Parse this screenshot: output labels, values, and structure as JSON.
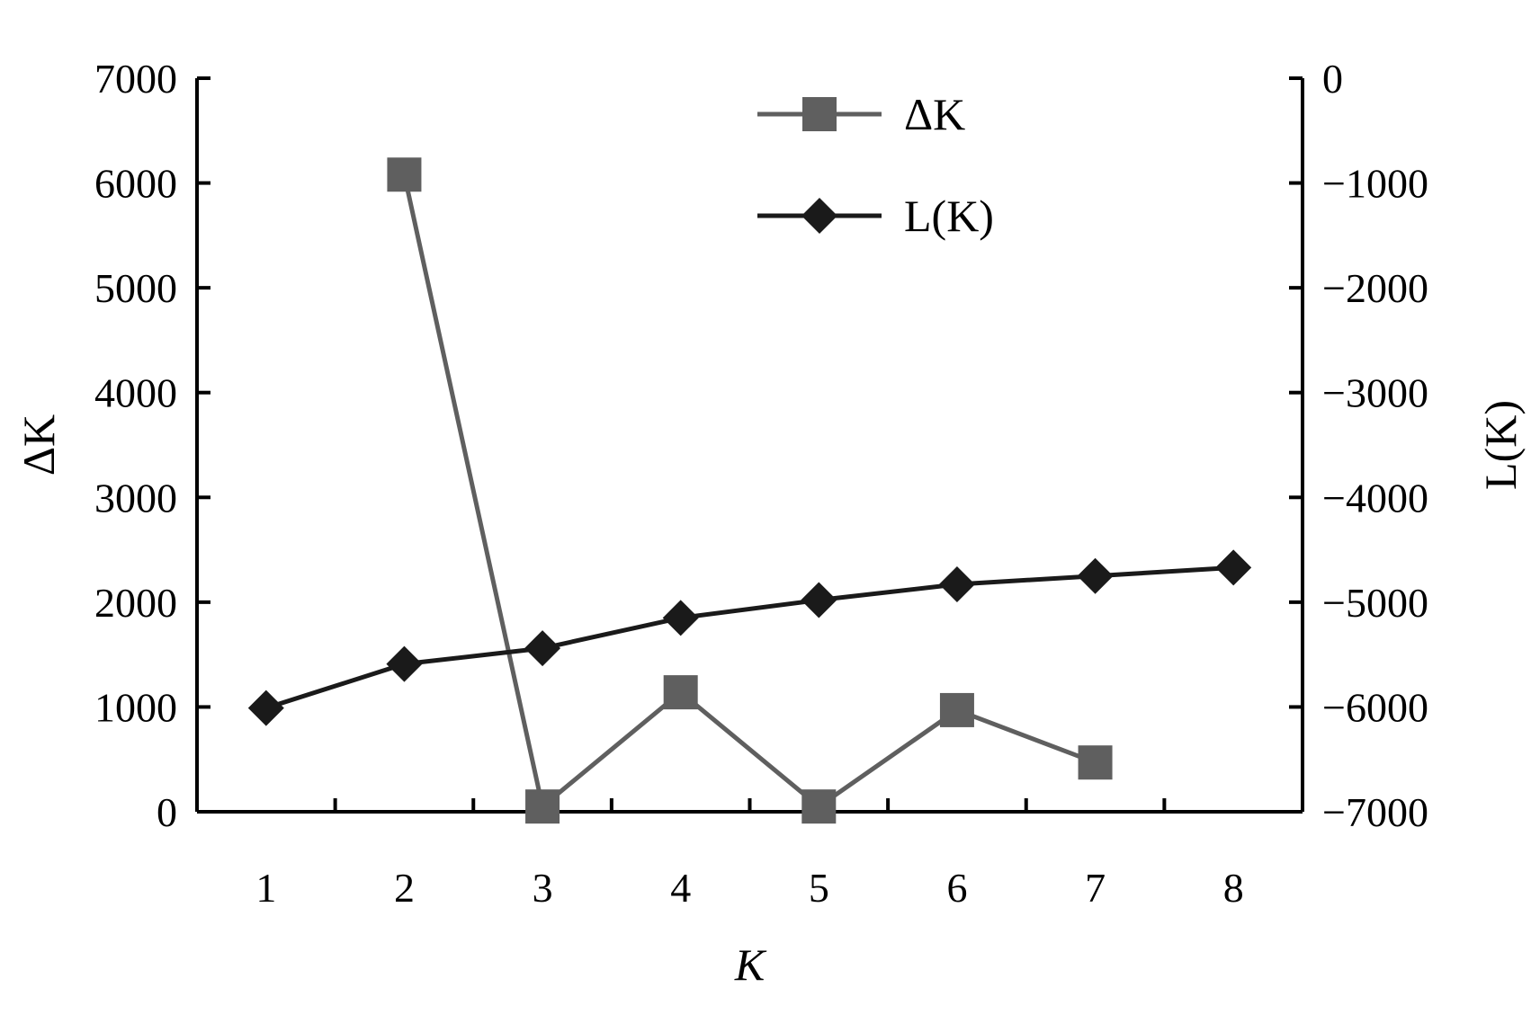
{
  "chart_data": {
    "type": "line",
    "x": [
      1,
      2,
      3,
      4,
      5,
      6,
      7,
      8
    ],
    "xlabel": "K",
    "xlim": [
      0.5,
      8.5
    ],
    "x_ticks": [
      "1",
      "2",
      "3",
      "4",
      "5",
      "6",
      "7",
      "8"
    ],
    "y_left": {
      "label": "ΔK",
      "lim": [
        0,
        7000
      ],
      "ticks": [
        "0",
        "1000",
        "2000",
        "3000",
        "4000",
        "5000",
        "6000",
        "7000"
      ]
    },
    "y_right": {
      "label": "L(K)",
      "lim": [
        -7000,
        0
      ],
      "ticks": [
        "−7000",
        "−6000",
        "−5000",
        "−4000",
        "−3000",
        "−2000",
        "−1000",
        "0"
      ]
    },
    "series": [
      {
        "name": "ΔK",
        "axis": "left",
        "marker": "square",
        "color": "#5f5f5f",
        "x": [
          2,
          3,
          4,
          5,
          6,
          7
        ],
        "values": [
          6080,
          50,
          1140,
          50,
          970,
          470
        ]
      },
      {
        "name": "L(K)",
        "axis": "right",
        "marker": "diamond",
        "color": "#1a1a1a",
        "x": [
          1,
          2,
          3,
          4,
          5,
          6,
          7,
          8
        ],
        "values": [
          -6010,
          -5590,
          -5440,
          -5150,
          -4980,
          -4830,
          -4750,
          -4670
        ]
      }
    ],
    "legend_position": "top-center",
    "grid": false
  }
}
